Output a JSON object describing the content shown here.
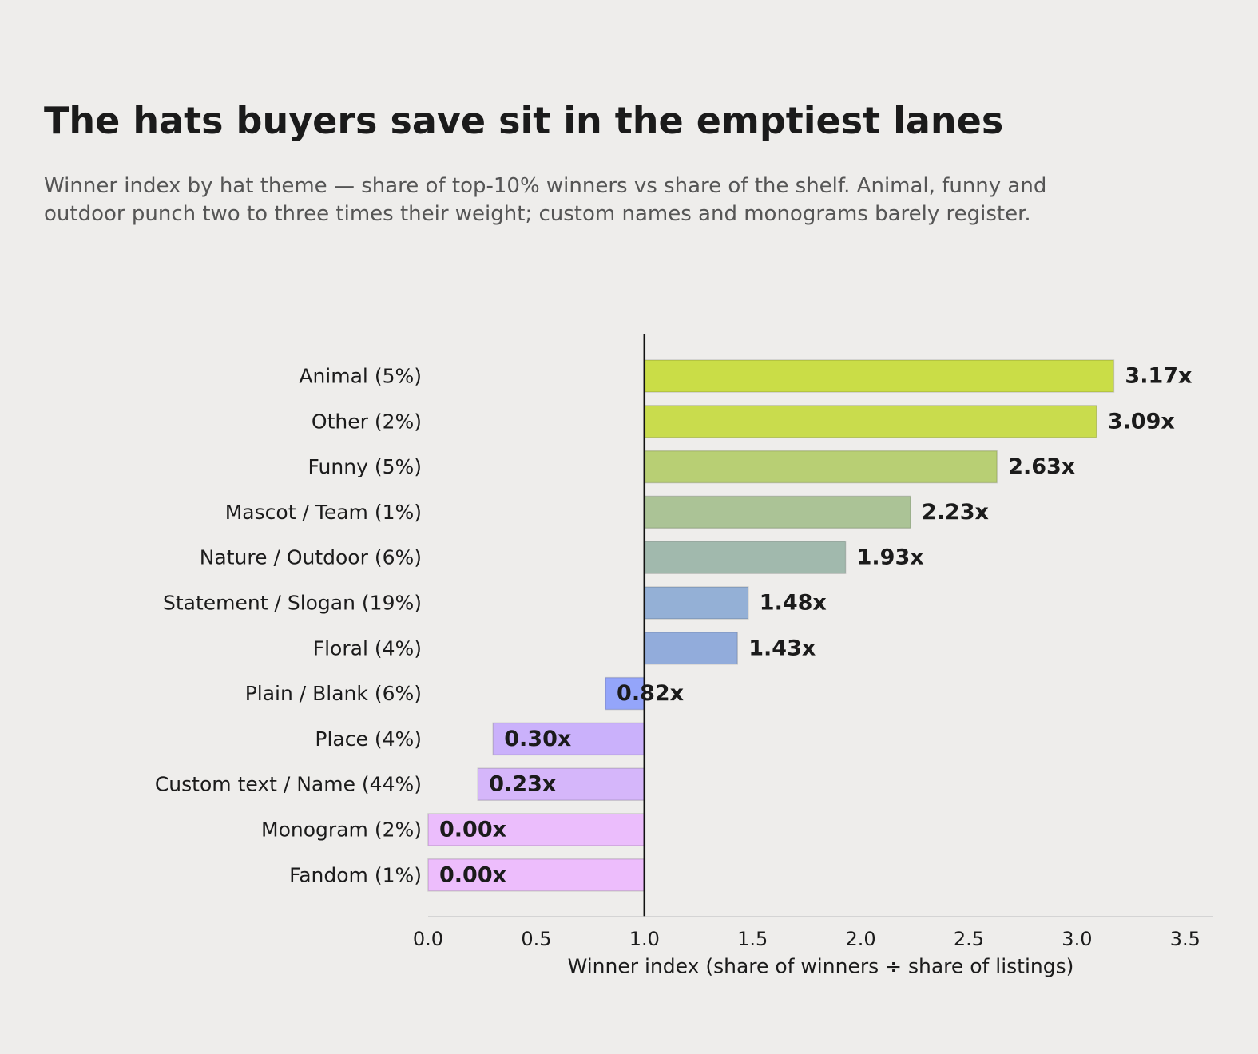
{
  "header": {
    "title": "The hats buyers save sit in the emptiest lanes",
    "subtitle": "Winner index by hat theme — share of top-10% winners vs share of the shelf. Animal, funny and outdoor punch two to three times their weight; custom names and monograms barely register."
  },
  "chart_data": {
    "type": "bar",
    "orientation": "horizontal",
    "title": "The hats buyers save sit in the emptiest lanes",
    "subtitle": "Winner index by hat theme — share of top-10% winners vs share of the shelf. Animal, funny and outdoor punch two to three times their weight; custom names and monograms barely register.",
    "xlabel": "Winner index  (share of winners ÷ share of listings)",
    "ylabel": "",
    "xlim": [
      0,
      3.63
    ],
    "xticks": [
      0.0,
      0.5,
      1.0,
      1.5,
      2.0,
      2.5,
      3.0,
      3.5
    ],
    "xtick_labels": [
      "0.0",
      "0.5",
      "1.0",
      "1.5",
      "2.0",
      "2.5",
      "3.0",
      "3.5"
    ],
    "baseline": 1.0,
    "grid": false,
    "categories": [
      "Animal  (5%)",
      "Other  (2%)",
      "Funny  (5%)",
      "Mascot / Team  (1%)",
      "Nature / Outdoor  (6%)",
      "Statement / Slogan  (19%)",
      "Floral  (4%)",
      "Plain / Blank  (6%)",
      "Place  (4%)",
      "Custom text / Name  (44%)",
      "Monogram  (2%)",
      "Fandom  (1%)"
    ],
    "values": [
      3.17,
      3.09,
      2.63,
      2.23,
      1.93,
      1.48,
      1.43,
      0.82,
      0.3,
      0.23,
      0.0,
      0.0
    ],
    "value_labels": [
      "3.17x",
      "3.09x",
      "2.63x",
      "2.23x",
      "1.93x",
      "1.48x",
      "1.43x",
      "0.82x",
      "0.30x",
      "0.23x",
      "0.00x",
      "0.00x"
    ],
    "colors": [
      "#CADD47",
      "#C9DC4D",
      "#B8CF74",
      "#ABC396",
      "#A1B9AD",
      "#94B0D6",
      "#92ACDB",
      "#94A5FA",
      "#CAB1FB",
      "#D5B6FA",
      "#EBBDFC",
      "#EDBDFC"
    ]
  }
}
